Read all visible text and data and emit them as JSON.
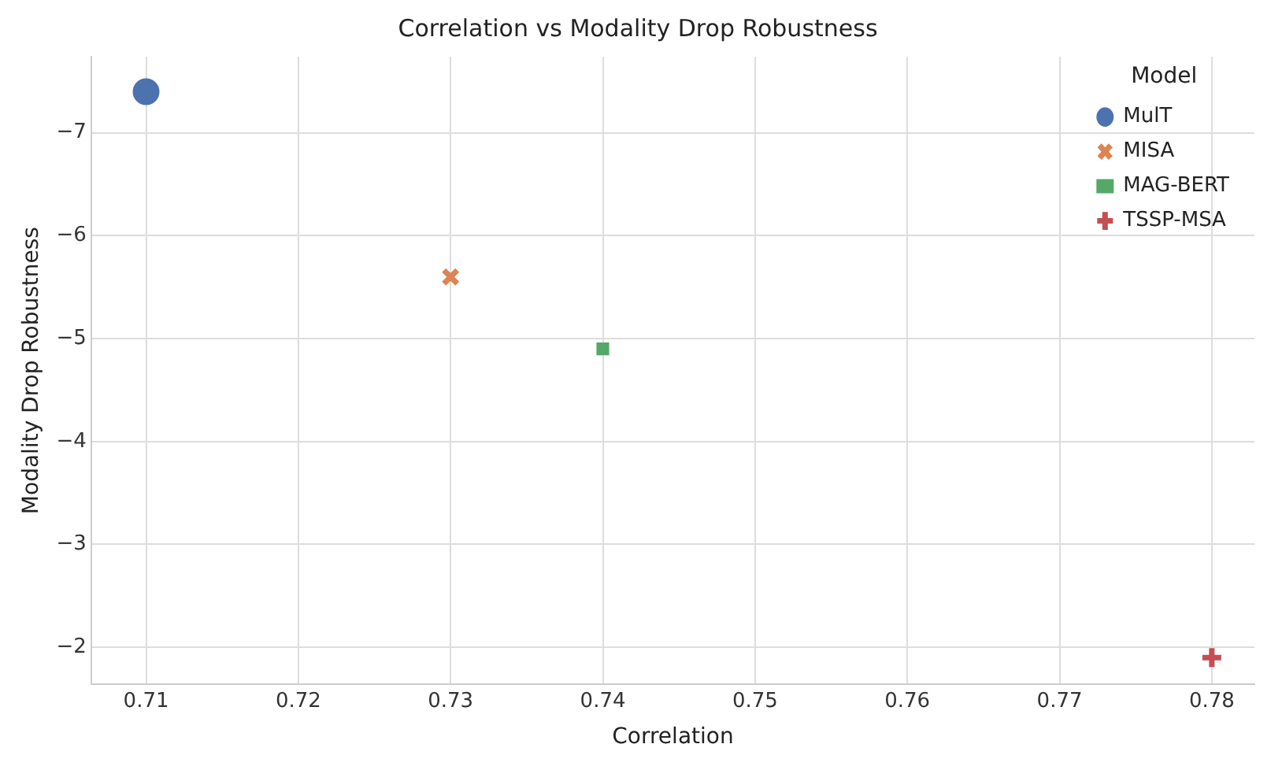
{
  "chart_data": {
    "type": "scatter",
    "title": "Correlation vs Modality Drop Robustness",
    "xlabel": "Correlation",
    "ylabel": "Modality Drop Robustness",
    "legend_title": "Model",
    "legend": "top right",
    "grid": true,
    "xlim": [
      0.7064,
      0.7828
    ],
    "xticks": [
      0.71,
      0.72,
      0.73,
      0.74,
      0.75,
      0.76,
      0.77,
      0.78
    ],
    "ylim": [
      -1.64,
      -7.74
    ],
    "yticks": [
      {
        "value": -7,
        "label": "−7"
      },
      {
        "value": -6,
        "label": "−6"
      },
      {
        "value": -5,
        "label": "−5"
      },
      {
        "value": -4,
        "label": "−4"
      },
      {
        "value": -3,
        "label": "−3"
      },
      {
        "value": -2,
        "label": "−2"
      }
    ],
    "series": [
      {
        "name": "MulT",
        "color": "#4c72b0",
        "marker": "circle",
        "x": [
          0.71
        ],
        "values": [
          -7.4
        ]
      },
      {
        "name": "MISA",
        "color": "#dd8452",
        "marker": "cross",
        "x": [
          0.73
        ],
        "values": [
          -5.6
        ]
      },
      {
        "name": "MAG-BERT",
        "color": "#55a868",
        "marker": "square",
        "x": [
          0.74
        ],
        "values": [
          -4.9
        ]
      },
      {
        "name": "TSSP-MSA",
        "color": "#c44e52",
        "marker": "plus",
        "x": [
          0.78
        ],
        "values": [
          -1.9
        ]
      }
    ]
  }
}
